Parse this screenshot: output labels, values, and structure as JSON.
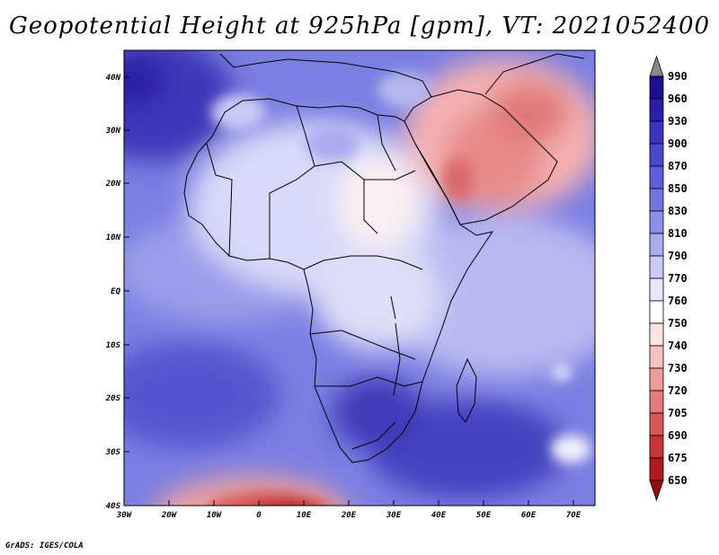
{
  "title": "Geopotential Height at 925hPa [gpm], VT: 2021052400",
  "credit": "GrADS: IGES/COLA",
  "lat_labels": [
    "40N",
    "30N",
    "20N",
    "10N",
    "EQ",
    "10S",
    "20S",
    "30S",
    "40S"
  ],
  "lon_labels": [
    "30W",
    "20W",
    "10W",
    "0",
    "10E",
    "20E",
    "30E",
    "40E",
    "50E",
    "60E",
    "70E"
  ],
  "colorbar": {
    "levels": [
      "990",
      "960",
      "930",
      "900",
      "870",
      "850",
      "830",
      "810",
      "790",
      "770",
      "760",
      "750",
      "740",
      "730",
      "720",
      "705",
      "690",
      "675",
      "650"
    ],
    "colors": [
      "#8a8a8a",
      "#1a0f8f",
      "#2a1fa8",
      "#3a33bd",
      "#4a48cc",
      "#5d5fd8",
      "#7275e0",
      "#8c8ee8",
      "#a9abef",
      "#c9caf6",
      "#e6e7fc",
      "#ffffff",
      "#fde3e3",
      "#f6c0c0",
      "#ee9c9c",
      "#e47a7a",
      "#d85656",
      "#c83434",
      "#b01c1c",
      "#941010",
      "#b01c1c"
    ]
  },
  "colors": {
    "ocean_blue": "#6a6fdc",
    "deep_blue": "#3b35b8",
    "land_light": "#dcdcf8",
    "hot_red": "#e07070",
    "white": "#ffffff"
  }
}
